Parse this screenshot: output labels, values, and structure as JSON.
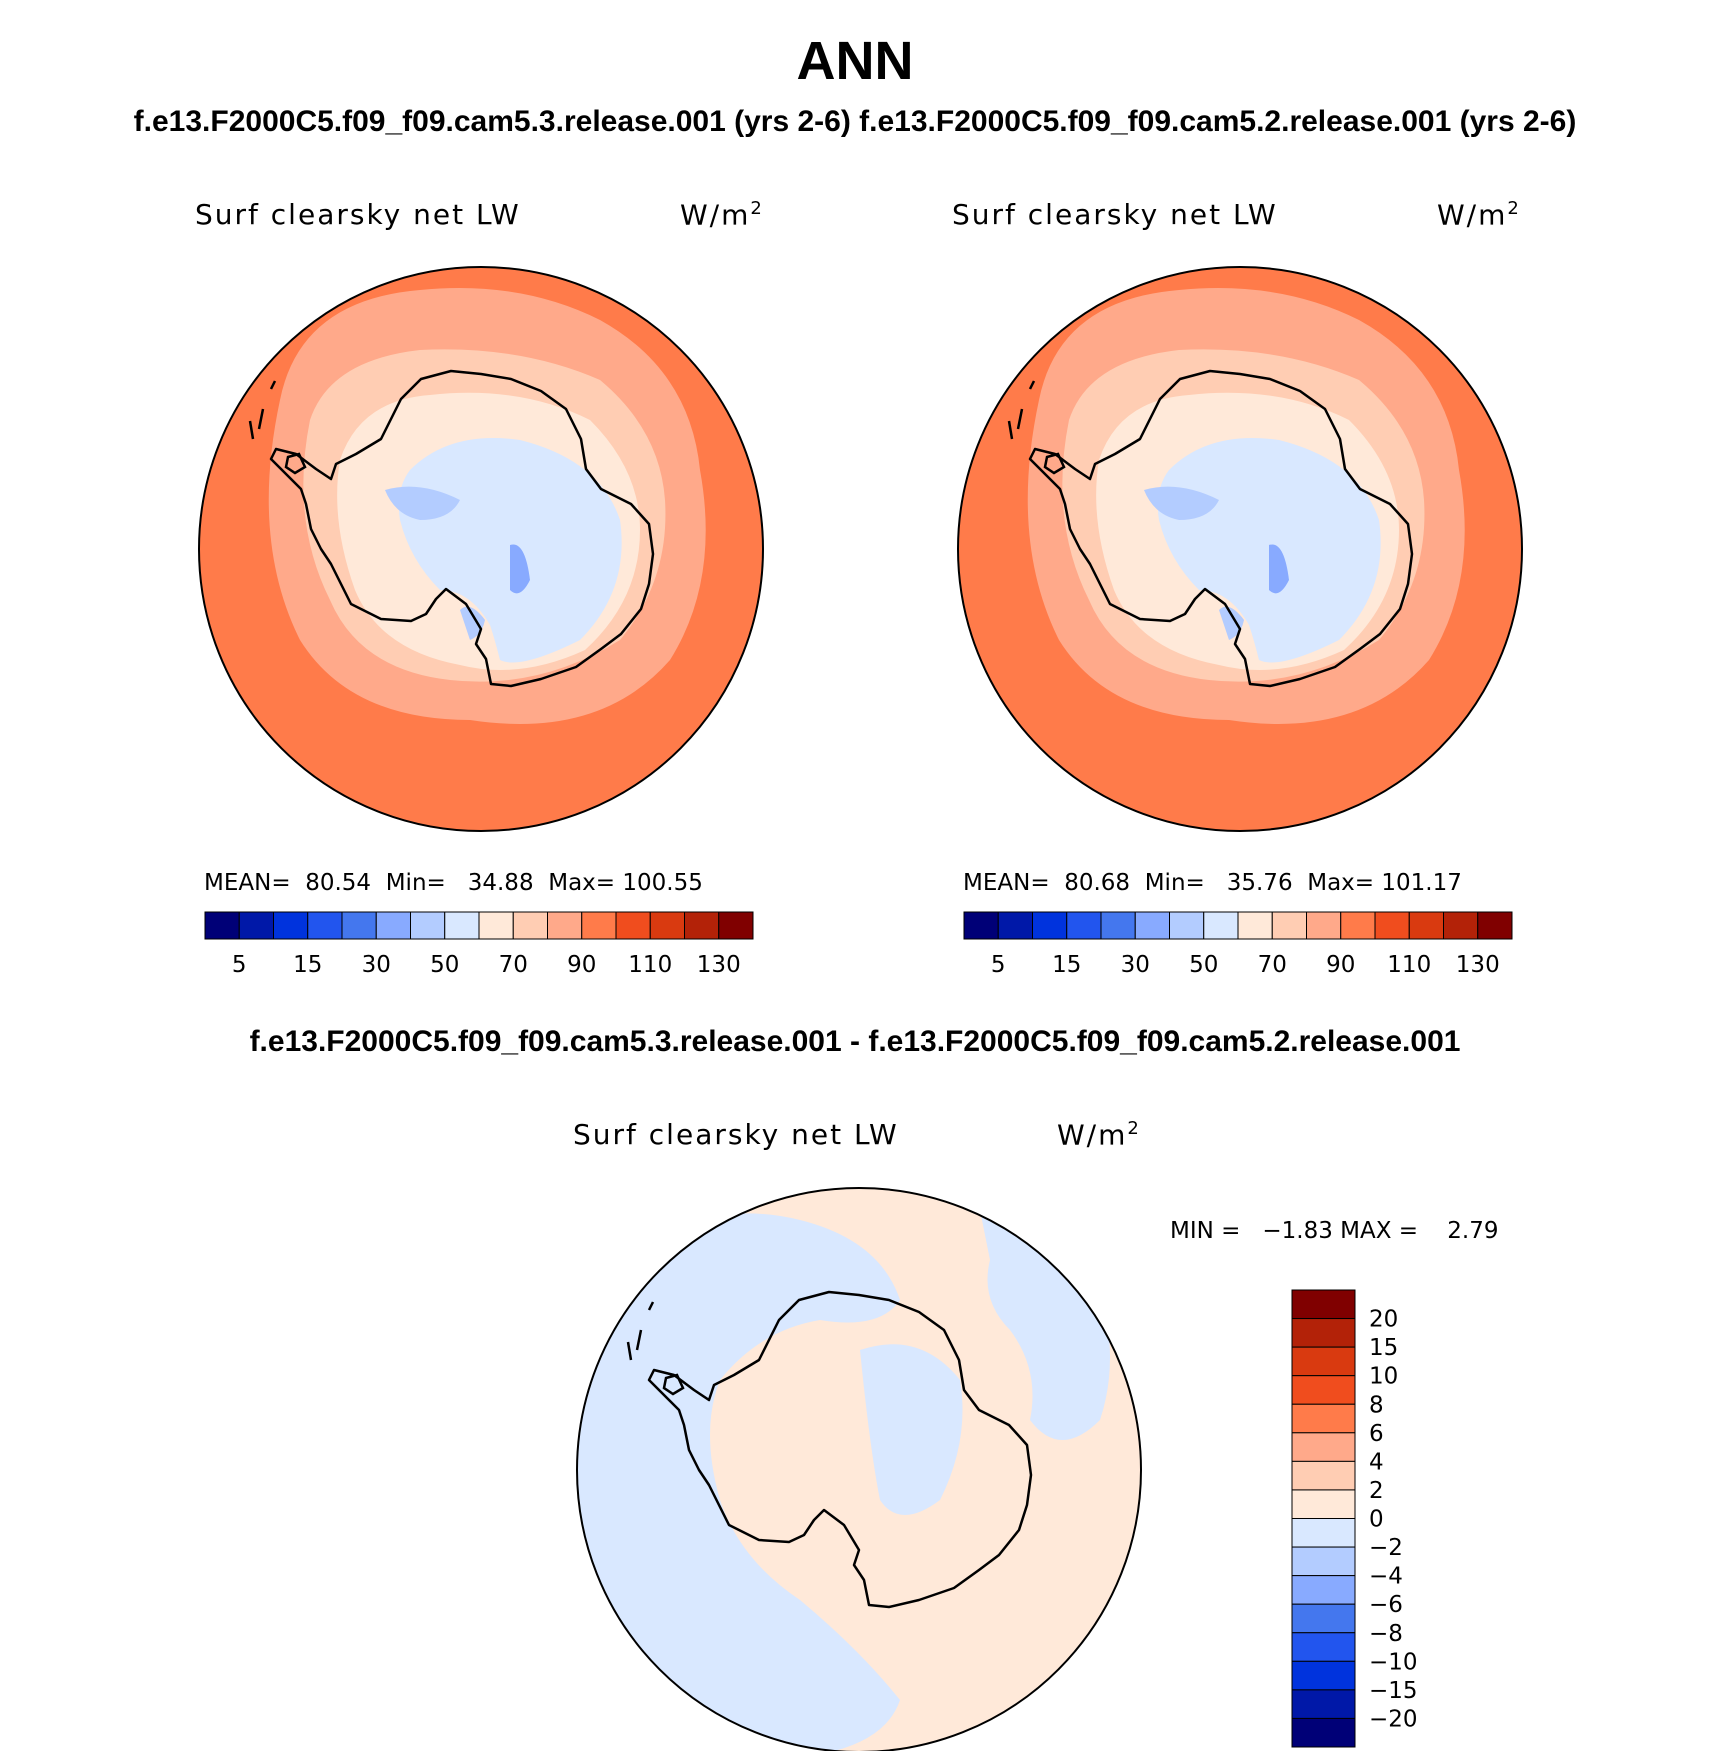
{
  "header": {
    "title": "ANN",
    "top_subtitle": "f.e13.F2000C5.f09_f09.cam5.3.release.001 (yrs 2-6)  f.e13.F2000C5.f09_f09.cam5.2.release.001 (yrs 2-6)",
    "diff_subtitle": "f.e13.F2000C5.f09_f09.cam5.3.release.001 - f.e13.F2000C5.f09_f09.cam5.2.release.001"
  },
  "panels": [
    {
      "variable": "Surf clearsky net LW",
      "units_base": "W/m",
      "units_exp": "2",
      "mean_label": "MEAN=",
      "mean": "80.54",
      "min_label": "Min=",
      "min": "34.88",
      "max_label": "Max=",
      "max": "100.55"
    },
    {
      "variable": "Surf clearsky net LW",
      "units_base": "W/m",
      "units_exp": "2",
      "mean_label": "MEAN=",
      "mean": "80.68",
      "min_label": "Min=",
      "min": "35.76",
      "max_label": "Max=",
      "max": "101.17"
    }
  ],
  "diff_panel": {
    "variable": "Surf clearsky net LW",
    "units_base": "W/m",
    "units_exp": "2",
    "range_text": "MIN =   −1.83 MAX =    2.79"
  },
  "colorbar_main": {
    "colors": [
      "#000077",
      "#0018a8",
      "#0033dd",
      "#2255ee",
      "#4477ee",
      "#88aaff",
      "#b3ccff",
      "#d9e8ff",
      "#ffe9d9",
      "#ffcdb3",
      "#ffa98a",
      "#ff7b4a",
      "#f04d1e",
      "#d93a10",
      "#b32208",
      "#800000"
    ],
    "labels": [
      "5",
      "15",
      "30",
      "50",
      "70",
      "90",
      "110",
      "130"
    ]
  },
  "colorbar_diff": {
    "colors_top_to_bottom": [
      "#800000",
      "#b32208",
      "#d93a10",
      "#f04d1e",
      "#ff7b4a",
      "#ffa98a",
      "#ffcdb3",
      "#ffe9d9",
      "#d9e8ff",
      "#b3ccff",
      "#88aaff",
      "#4477ee",
      "#2255ee",
      "#0033dd",
      "#0018a8",
      "#000077"
    ],
    "labels_top_to_bottom": [
      "20",
      "15",
      "10",
      "8",
      "6",
      "4",
      "2",
      "0",
      "−2",
      "−4",
      "−6",
      "−8",
      "−10",
      "−15",
      "−20"
    ]
  },
  "map_colors": {
    "ocean_outer": "#ff7b4a",
    "ocean_mid": "#ffa98a",
    "ocean_inner": "#ffcdb3",
    "coast_band": "#ffe9d9",
    "interior": "#d9e8ff",
    "interior_low": "#b3ccff",
    "interior_lowest": "#88aaff",
    "diff_positive": "#ffe9d9",
    "diff_negative": "#d9e8ff"
  }
}
